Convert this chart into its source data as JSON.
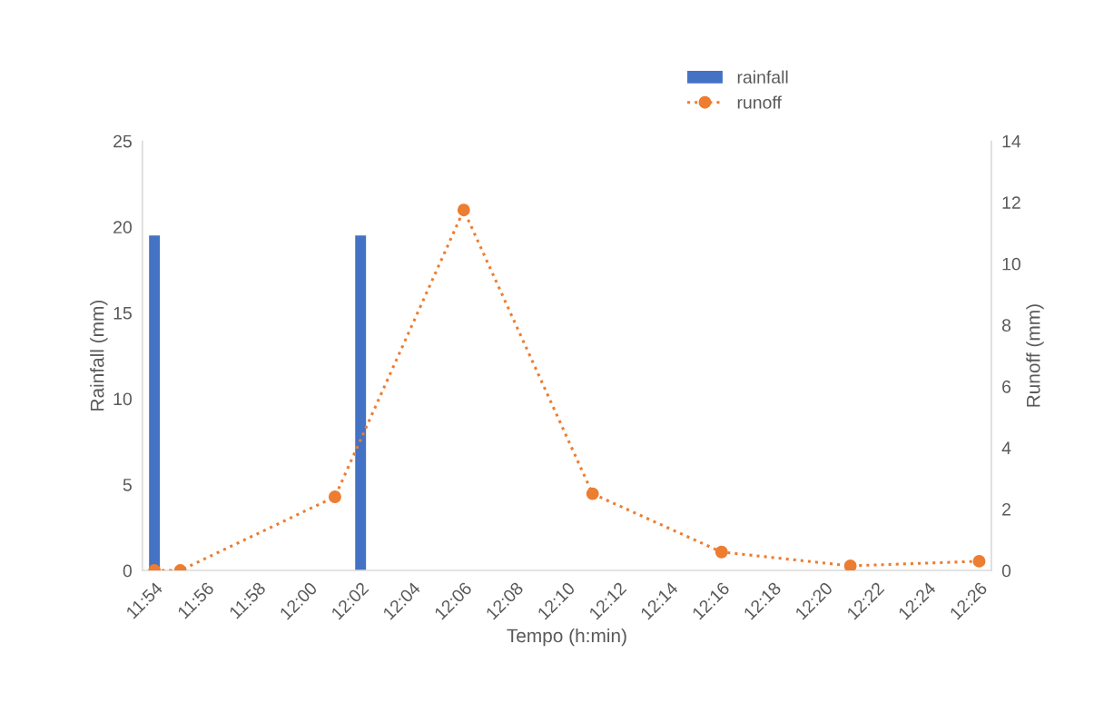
{
  "chart_data": {
    "type": "bar",
    "xlabel": "Tempo (h:min)",
    "ylabel": "Rainfall (mm)",
    "y2label": "Runoff (mm)",
    "xlim": [
      11.8922,
      12.4412
    ],
    "xticks": [
      {
        "value": 11.9,
        "label": "11:54"
      },
      {
        "value": 11.9333,
        "label": "11:56"
      },
      {
        "value": 11.9667,
        "label": "11:58"
      },
      {
        "value": 12.0,
        "label": "12:00"
      },
      {
        "value": 12.0333,
        "label": "12:02"
      },
      {
        "value": 12.0667,
        "label": "12:04"
      },
      {
        "value": 12.1,
        "label": "12:06"
      },
      {
        "value": 12.1333,
        "label": "12:08"
      },
      {
        "value": 12.1667,
        "label": "12:10"
      },
      {
        "value": 12.2,
        "label": "12:12"
      },
      {
        "value": 12.2333,
        "label": "12:14"
      },
      {
        "value": 12.2667,
        "label": "12:16"
      },
      {
        "value": 12.3,
        "label": "12:18"
      },
      {
        "value": 12.3333,
        "label": "12:20"
      },
      {
        "value": 12.3667,
        "label": "12:22"
      },
      {
        "value": 12.4,
        "label": "12:24"
      },
      {
        "value": 12.4333,
        "label": "12:26"
      }
    ],
    "ylim": [
      0,
      25
    ],
    "yticks": [
      0,
      5,
      10,
      15,
      20,
      25
    ],
    "y2lim": [
      0,
      14
    ],
    "y2ticks": [
      0,
      2,
      4,
      6,
      8,
      10,
      12,
      14
    ],
    "grid": false,
    "legend": "top right",
    "series": [
      {
        "name": "rainfall",
        "color": "#4472c4",
        "x": [
          11.9,
          12.0333
        ],
        "values": [
          19.5,
          19.5
        ]
      },
      {
        "name": "runoff",
        "type": "line",
        "axis": "y2",
        "color": "#ed7d31",
        "marker": "circle",
        "line_style": "dotted",
        "x": [
          11.9,
          11.9167,
          12.0167,
          12.1,
          12.1833,
          12.2667,
          12.35,
          12.4333
        ],
        "values": [
          0,
          0,
          2.4,
          11.75,
          2.5,
          0.6,
          0.15,
          0.3
        ]
      }
    ]
  }
}
